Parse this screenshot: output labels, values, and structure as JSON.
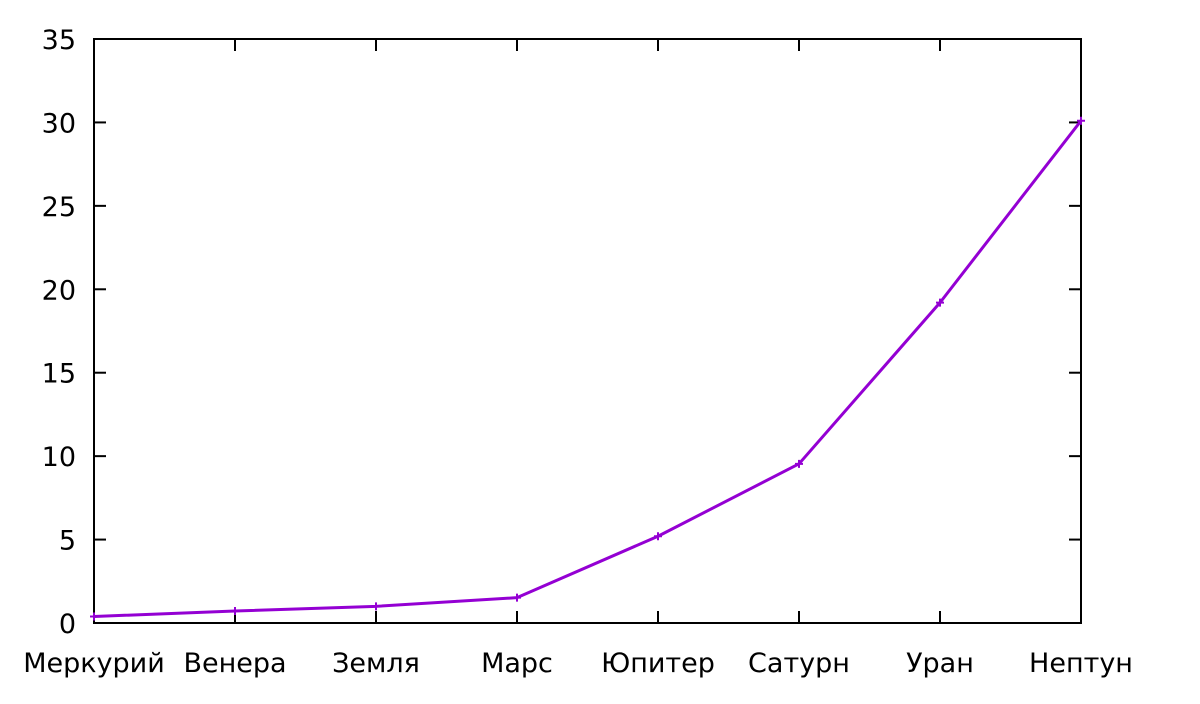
{
  "chart_data": {
    "type": "line",
    "title": "",
    "xlabel": "",
    "ylabel": "",
    "categories": [
      "Меркурий",
      "Венера",
      "Земля",
      "Марс",
      "Юпитер",
      "Сатурн",
      "Уран",
      "Нептун"
    ],
    "series": [
      {
        "values": [
          0.39,
          0.72,
          1.0,
          1.52,
          5.2,
          9.54,
          19.2,
          30.1
        ],
        "color": "#9400d3"
      }
    ],
    "ylim": [
      0,
      35
    ],
    "yticks": [
      "0",
      "5",
      "10",
      "15",
      "20",
      "25",
      "30",
      "35"
    ],
    "grid": false,
    "legend": "none"
  }
}
